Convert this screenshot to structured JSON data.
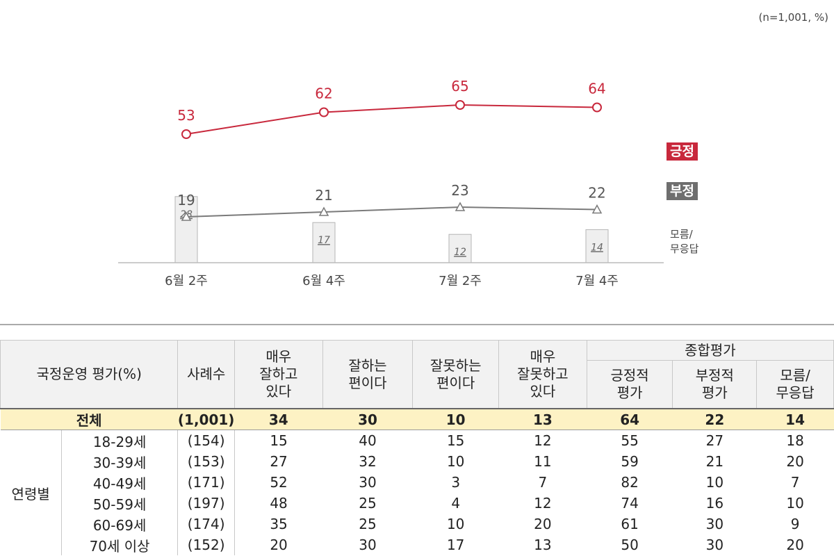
{
  "note": "(n=1,001,  %)",
  "legend": {
    "positive": "긍정",
    "negative": "부정",
    "dk_line1": "모름/",
    "dk_line2": "무응답"
  },
  "chart_data": {
    "type": "line",
    "categories": [
      "6월 2주",
      "6월 4주",
      "7월 2주",
      "7월 4주"
    ],
    "series": [
      {
        "name": "긍정",
        "values": [
          53,
          62,
          65,
          64
        ],
        "color": "#c8283c"
      },
      {
        "name": "부정",
        "values": [
          19,
          21,
          23,
          22
        ],
        "color": "#7a7a7a"
      },
      {
        "name": "모름/무응답",
        "type": "bar",
        "values": [
          28,
          17,
          12,
          14
        ],
        "color": "#efefef"
      }
    ]
  },
  "table": {
    "header": {
      "label": "국정운영 평가(%)",
      "count": "사례수",
      "very_good": [
        "매우",
        "잘하고",
        "있다"
      ],
      "good": [
        "잘하는",
        "편이다"
      ],
      "bad": [
        "잘못하는",
        "편이다"
      ],
      "very_bad": [
        "매우",
        "잘못하고",
        "있다"
      ],
      "overall": "종합평가",
      "pos": [
        "긍정적",
        "평가"
      ],
      "neg": [
        "부정적",
        "평가"
      ],
      "dk": [
        "모름/",
        "무응답"
      ]
    },
    "total": {
      "label": "전체",
      "count": "(1,001)",
      "values": [
        "34",
        "30",
        "10",
        "13",
        "64",
        "22",
        "14"
      ]
    },
    "group_label": "연령별",
    "rows": [
      {
        "label": "18-29세",
        "count": "(154)",
        "values": [
          "15",
          "40",
          "15",
          "12",
          "55",
          "27",
          "18"
        ]
      },
      {
        "label": "30-39세",
        "count": "(153)",
        "values": [
          "27",
          "32",
          "10",
          "11",
          "59",
          "21",
          "20"
        ]
      },
      {
        "label": "40-49세",
        "count": "(171)",
        "values": [
          "52",
          "30",
          "3",
          "7",
          "82",
          "10",
          "7"
        ]
      },
      {
        "label": "50-59세",
        "count": "(197)",
        "values": [
          "48",
          "25",
          "4",
          "12",
          "74",
          "16",
          "10"
        ]
      },
      {
        "label": "60-69세",
        "count": "(174)",
        "values": [
          "35",
          "25",
          "10",
          "20",
          "61",
          "30",
          "9"
        ]
      },
      {
        "label": "70세 이상",
        "count": "(152)",
        "values": [
          "20",
          "30",
          "17",
          "13",
          "50",
          "30",
          "20"
        ]
      }
    ]
  }
}
